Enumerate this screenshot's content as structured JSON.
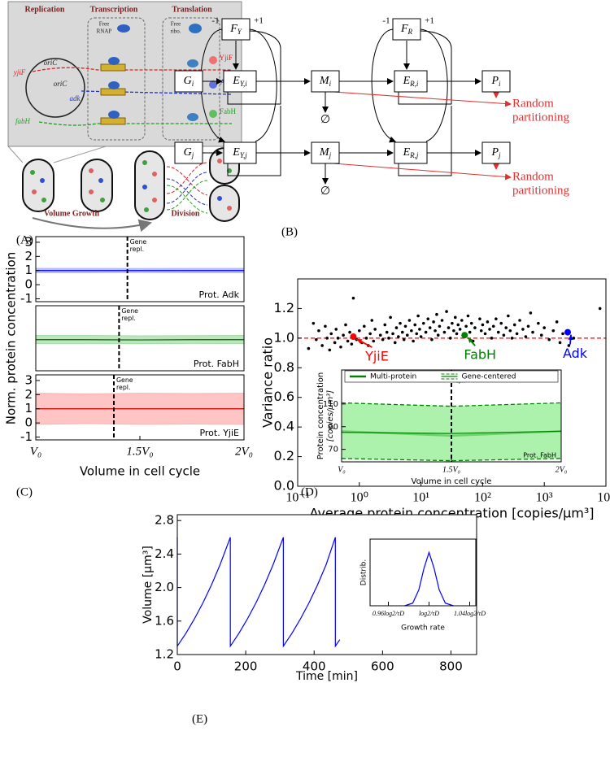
{
  "panel_labels": [
    "(A)",
    "(B)",
    "(C)",
    "(D)",
    "(E)"
  ],
  "diagram_a": {
    "stages": [
      "Replication",
      "Transcription",
      "Translation"
    ],
    "free_rnap": [
      "Free",
      "RNAP"
    ],
    "free_ribo": [
      "Free",
      "ribo."
    ],
    "origins": [
      "oriC",
      "oriC"
    ],
    "genes": [
      "yjiF",
      "adk",
      "fabH"
    ],
    "proteins": [
      "YjiF",
      "Adk",
      "FabH"
    ],
    "phases": [
      "Volume Growth",
      "Division"
    ]
  },
  "diagram_b": {
    "nodes": [
      {
        "label": "F",
        "sub": "Y"
      },
      {
        "label": "F",
        "sub": "R"
      },
      {
        "label": "G",
        "sub": "i"
      },
      {
        "label": "E",
        "sub": "Y,i"
      },
      {
        "label": "M",
        "sub": "i"
      },
      {
        "label": "E",
        "sub": "R,i"
      },
      {
        "label": "P",
        "sub": "i"
      },
      {
        "label": "G",
        "sub": "j"
      },
      {
        "label": "E",
        "sub": "Y,j"
      },
      {
        "label": "M",
        "sub": "j"
      },
      {
        "label": "E",
        "sub": "R,j"
      },
      {
        "label": "P",
        "sub": "j"
      }
    ],
    "loops": [
      {
        "neg": "-1",
        "pos": "+1"
      },
      {
        "neg": "-1",
        "pos": "+1"
      }
    ],
    "sinks": [
      "∅",
      "∅"
    ],
    "partitioning": [
      [
        "Random",
        "partitioning"
      ],
      [
        "Random",
        "partitioning"
      ]
    ]
  },
  "chart_data": [
    {
      "type": "band",
      "ylabel": "Norm. protein concentration",
      "label": "Prot. Adk",
      "annotation": [
        "Gene",
        "repl."
      ],
      "xlim": [
        1,
        2
      ],
      "ylim": [
        -1.2,
        3.4
      ],
      "yticks": [
        -1,
        0,
        1,
        2,
        3
      ],
      "vline": 1.44,
      "series": [
        {
          "color": "#0000ff",
          "band_color": "#aab0ff",
          "x": [
            1,
            1.25,
            1.5,
            1.75,
            2
          ],
          "values": [
            1,
            1,
            1,
            1,
            1
          ],
          "lower": [
            0.85,
            0.85,
            0.86,
            0.85,
            0.85
          ],
          "upper": [
            1.15,
            1.15,
            1.14,
            1.15,
            1.15
          ]
        }
      ]
    },
    {
      "type": "band",
      "label": "Prot. FabH",
      "annotation": [
        "Gene",
        "repl."
      ],
      "xlim": [
        1,
        2
      ],
      "ylim": [
        -1.2,
        3.4
      ],
      "vline": 1.4,
      "series": [
        {
          "color": "#006400",
          "band_color": "#a8dca8",
          "x": [
            1,
            1.25,
            1.5,
            1.75,
            2
          ],
          "values": [
            1,
            1,
            0.98,
            1,
            1
          ],
          "lower": [
            0.72,
            0.72,
            0.72,
            0.73,
            0.72
          ],
          "upper": [
            1.3,
            1.3,
            1.27,
            1.29,
            1.3
          ]
        }
      ]
    },
    {
      "type": "band",
      "label": "Prot. YjiE",
      "annotation": [
        "Gene",
        "repl."
      ],
      "xlabel": "Volume in cell cycle",
      "xlim": [
        1,
        2
      ],
      "ylim": [
        -1.2,
        3.4
      ],
      "yticks": [
        -1,
        0,
        1,
        2,
        3
      ],
      "vline": 1.375,
      "xticks": [
        {
          "value": 1,
          "label": "V₀"
        },
        {
          "value": 1.5,
          "label": "1.5V₀"
        },
        {
          "value": 2,
          "label": "2V₀"
        }
      ],
      "series": [
        {
          "color": "#cc0000",
          "band_color": "#ffb0b0",
          "x": [
            1,
            1.25,
            1.5,
            1.75,
            2
          ],
          "values": [
            1,
            1,
            1,
            1,
            1
          ],
          "lower": [
            -0.1,
            -0.05,
            -0.1,
            -0.08,
            -0.1
          ],
          "upper": [
            2.1,
            2.05,
            2.1,
            2.08,
            2.1
          ]
        }
      ]
    },
    {
      "type": "scatter",
      "xlabel": "Average protein concentration [copies/μm³]",
      "ylabel": "Variance ratio",
      "log_x": true,
      "xlim": [
        0.1,
        10000
      ],
      "ylim": [
        0,
        1.4
      ],
      "color": "#000000",
      "xticks": [
        {
          "value": 0.1,
          "label": "10⁻¹"
        },
        {
          "value": 1,
          "label": "10⁰"
        },
        {
          "value": 10,
          "label": "10¹"
        },
        {
          "value": 100,
          "label": "10²"
        },
        {
          "value": 1000,
          "label": "10³"
        },
        {
          "value": 10000,
          "label": "10⁴"
        }
      ],
      "yticks": [
        {
          "value": 0,
          "label": "0.0"
        },
        0.2,
        0.4,
        0.6,
        0.8,
        {
          "value": 1,
          "label": "1.0"
        },
        1.2
      ],
      "reference_line": 1,
      "reference_color": "#ff0000",
      "x": [
        0.15,
        0.18,
        0.2,
        0.22,
        0.25,
        0.28,
        0.3,
        0.33,
        0.35,
        0.4,
        0.42,
        0.45,
        0.5,
        0.55,
        0.6,
        0.65,
        0.7,
        0.75,
        0.8,
        0.85,
        0.9,
        1,
        1.1,
        1.2,
        1.3,
        1.4,
        1.5,
        1.6,
        1.7,
        1.8,
        2.2,
        2.4,
        2.6,
        2.8,
        3,
        3.2,
        3.5,
        3.8,
        4,
        4.3,
        4.6,
        5,
        5.3,
        5.6,
        6,
        6.5,
        7,
        7.5,
        8,
        8.5,
        9,
        9.5,
        10,
        11,
        12,
        13,
        14,
        15,
        16,
        17,
        18,
        19,
        20,
        22,
        24,
        26,
        28,
        30,
        32,
        34,
        36,
        38,
        40,
        43,
        46,
        50,
        54,
        58,
        62,
        66,
        70,
        75,
        90,
        95,
        100,
        110,
        120,
        130,
        140,
        150,
        165,
        180,
        200,
        220,
        240,
        260,
        280,
        300,
        330,
        360,
        400,
        450,
        500,
        550,
        600,
        650,
        800,
        900,
        1000,
        1200,
        1400,
        1600,
        1800,
        2000,
        2500,
        3000,
        8000
      ],
      "values": [
        0.93,
        1.1,
        0.99,
        1.05,
        0.95,
        1.08,
        1,
        0.92,
        1.03,
        0.97,
        1.06,
        1,
        0.94,
        1.02,
        1.09,
        0.98,
        1.04,
        0.96,
        1.27,
        1.01,
        0.99,
        1.05,
        0.97,
        1.08,
        1,
        0.95,
        1.03,
        1.12,
        0.98,
        1.06,
        1.02,
        0.99,
        1.09,
        1.04,
        1,
        1.14,
        1.03,
        0.97,
        1.07,
        1.01,
        1.1,
        1.04,
        0.99,
        1.08,
        1.02,
        1.12,
        1.05,
        0.98,
        1.09,
        1.03,
        1.15,
        1.06,
        1.01,
        1.1,
        1.04,
        1.13,
        1.07,
        0.99,
        1.11,
        1.05,
        1.16,
        1.02,
        1.08,
        1.12,
        1.04,
        1.18,
        1.07,
        1,
        1.1,
        1.05,
        1.14,
        1.03,
        1.09,
        1.06,
        1.12,
        1.02,
        1.08,
        1.15,
        1.04,
        1.1,
        0.98,
        1.07,
        1.13,
        1.05,
        1.09,
        1.03,
        1.11,
        1.06,
        1,
        1.08,
        1.13,
        1.04,
        1.1,
        1.02,
        1.07,
        1.15,
        1.05,
        1,
        1.09,
        1.03,
        1.12,
        1.06,
        1.01,
        1.08,
        1.17,
        1.04,
        1.1,
        1.02,
        1.07,
        0.99,
        1.05,
        1.11,
        0.97,
        1.03,
        0.95,
        1,
        1.2
      ],
      "highlights": [
        {
          "name": "YjiE",
          "color": "#ff0000",
          "x": 0.8,
          "y": 1.01
        },
        {
          "name": "FabH",
          "color": "#008000",
          "x": 51,
          "y": 1.02
        },
        {
          "name": "Adk",
          "color": "#0000ff",
          "x": 2400,
          "y": 1.04
        }
      ]
    },
    {
      "type": "band",
      "xlabel": "Volume in cell cycle",
      "ylabel": "Protein concentration",
      "ylabel_unit": "[copies/μm³]",
      "label": "Prot. FabH",
      "annotation": [
        "Gene",
        "repl."
      ],
      "legend": true,
      "xlim": [
        1,
        2
      ],
      "ylim": [
        59,
        140
      ],
      "yticks": [
        70,
        90,
        110
      ],
      "vline": 1.5,
      "xticks": [
        {
          "value": 1,
          "label": "V₀"
        },
        {
          "value": 1.5,
          "label": "1.5V₀"
        },
        {
          "value": 2,
          "label": "2V₀"
        }
      ],
      "series": [
        {
          "name": "Multi-protein",
          "color": "#008000",
          "width": 2.5,
          "x": [
            1,
            1.5,
            2
          ],
          "values": [
            86,
            82,
            86
          ]
        },
        {
          "name": "Gene-centered",
          "color": "#008000",
          "band_color": "#90ee90",
          "dashed_bounds": true,
          "x": [
            1,
            1.5,
            2
          ],
          "values": [
            85,
            84,
            86
          ],
          "lower": [
            62,
            60,
            62
          ],
          "upper": [
            111,
            108,
            111
          ]
        }
      ]
    },
    {
      "type": "line",
      "xlabel": "Time [min]",
      "ylabel": "Volume [μm³]",
      "xlim": [
        0,
        875
      ],
      "ylim": [
        1.2,
        2.87
      ],
      "xticks": [
        0,
        200,
        400,
        600,
        800
      ],
      "yticks": [
        1.2,
        1.6,
        {
          "value": 2,
          "label": "2.0"
        },
        2.4,
        2.8
      ],
      "series": [
        {
          "color": "#0000ff",
          "x": [
            0,
            0,
            25,
            50,
            75,
            100,
            125,
            155,
            155,
            180,
            205,
            230,
            255,
            280,
            310,
            310,
            335,
            360,
            385,
            410,
            435,
            462,
            462,
            475
          ],
          "values": [
            2.6,
            1.3,
            1.453,
            1.626,
            1.818,
            2.033,
            2.273,
            2.6,
            1.3,
            1.453,
            1.626,
            1.818,
            2.033,
            2.273,
            2.6,
            1.3,
            1.453,
            1.626,
            1.818,
            2.033,
            2.273,
            2.6,
            1.3,
            1.378
          ]
        }
      ]
    },
    {
      "type": "line",
      "xlabel": "Growth rate",
      "ylabel": "Distrib.",
      "xlim": [
        0.942,
        1.046
      ],
      "ylim": [
        0,
        1.25
      ],
      "xticks": [
        {
          "value": 0.96,
          "label": "0.96log2/τD"
        },
        {
          "value": 1,
          "label": "log2/τD"
        },
        {
          "value": 1.04,
          "label": "1.04log2/τD"
        }
      ],
      "series": [
        {
          "color": "#0000ff",
          "x": [
            0.976,
            0.984,
            0.99,
            0.995,
            1,
            1.005,
            1.01,
            1.016,
            1.024
          ],
          "values": [
            0,
            0.05,
            0.3,
            0.7,
            1,
            0.7,
            0.3,
            0.05,
            0
          ]
        }
      ]
    }
  ]
}
